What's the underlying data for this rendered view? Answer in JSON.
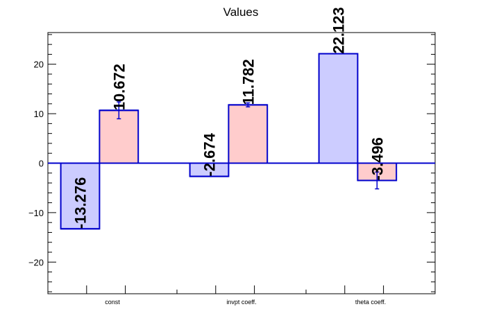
{
  "chart_data": {
    "type": "bar",
    "title": "Values",
    "categories": [
      "const",
      "invpt coeff.",
      "theta coeff."
    ],
    "ylim": [
      -26.4,
      26.4
    ],
    "yticks": [
      -20,
      -10,
      0,
      10,
      20
    ],
    "series": [
      {
        "color": "#ccccff",
        "values": [
          -13.276,
          -2.674,
          22.123
        ],
        "errors": [
          0,
          0,
          0
        ],
        "labels": [
          "-13.276",
          "-2.674",
          "22.123"
        ]
      },
      {
        "color": "#ffcccc",
        "values": [
          10.672,
          11.782,
          -3.496
        ],
        "errors": [
          1.7,
          0.4,
          1.7
        ],
        "labels": [
          "10.672",
          "11.782",
          "-3.496"
        ]
      }
    ],
    "grid": false,
    "legend": "none",
    "colors": {
      "edge": "#0000cc",
      "axis": "#000000"
    }
  }
}
